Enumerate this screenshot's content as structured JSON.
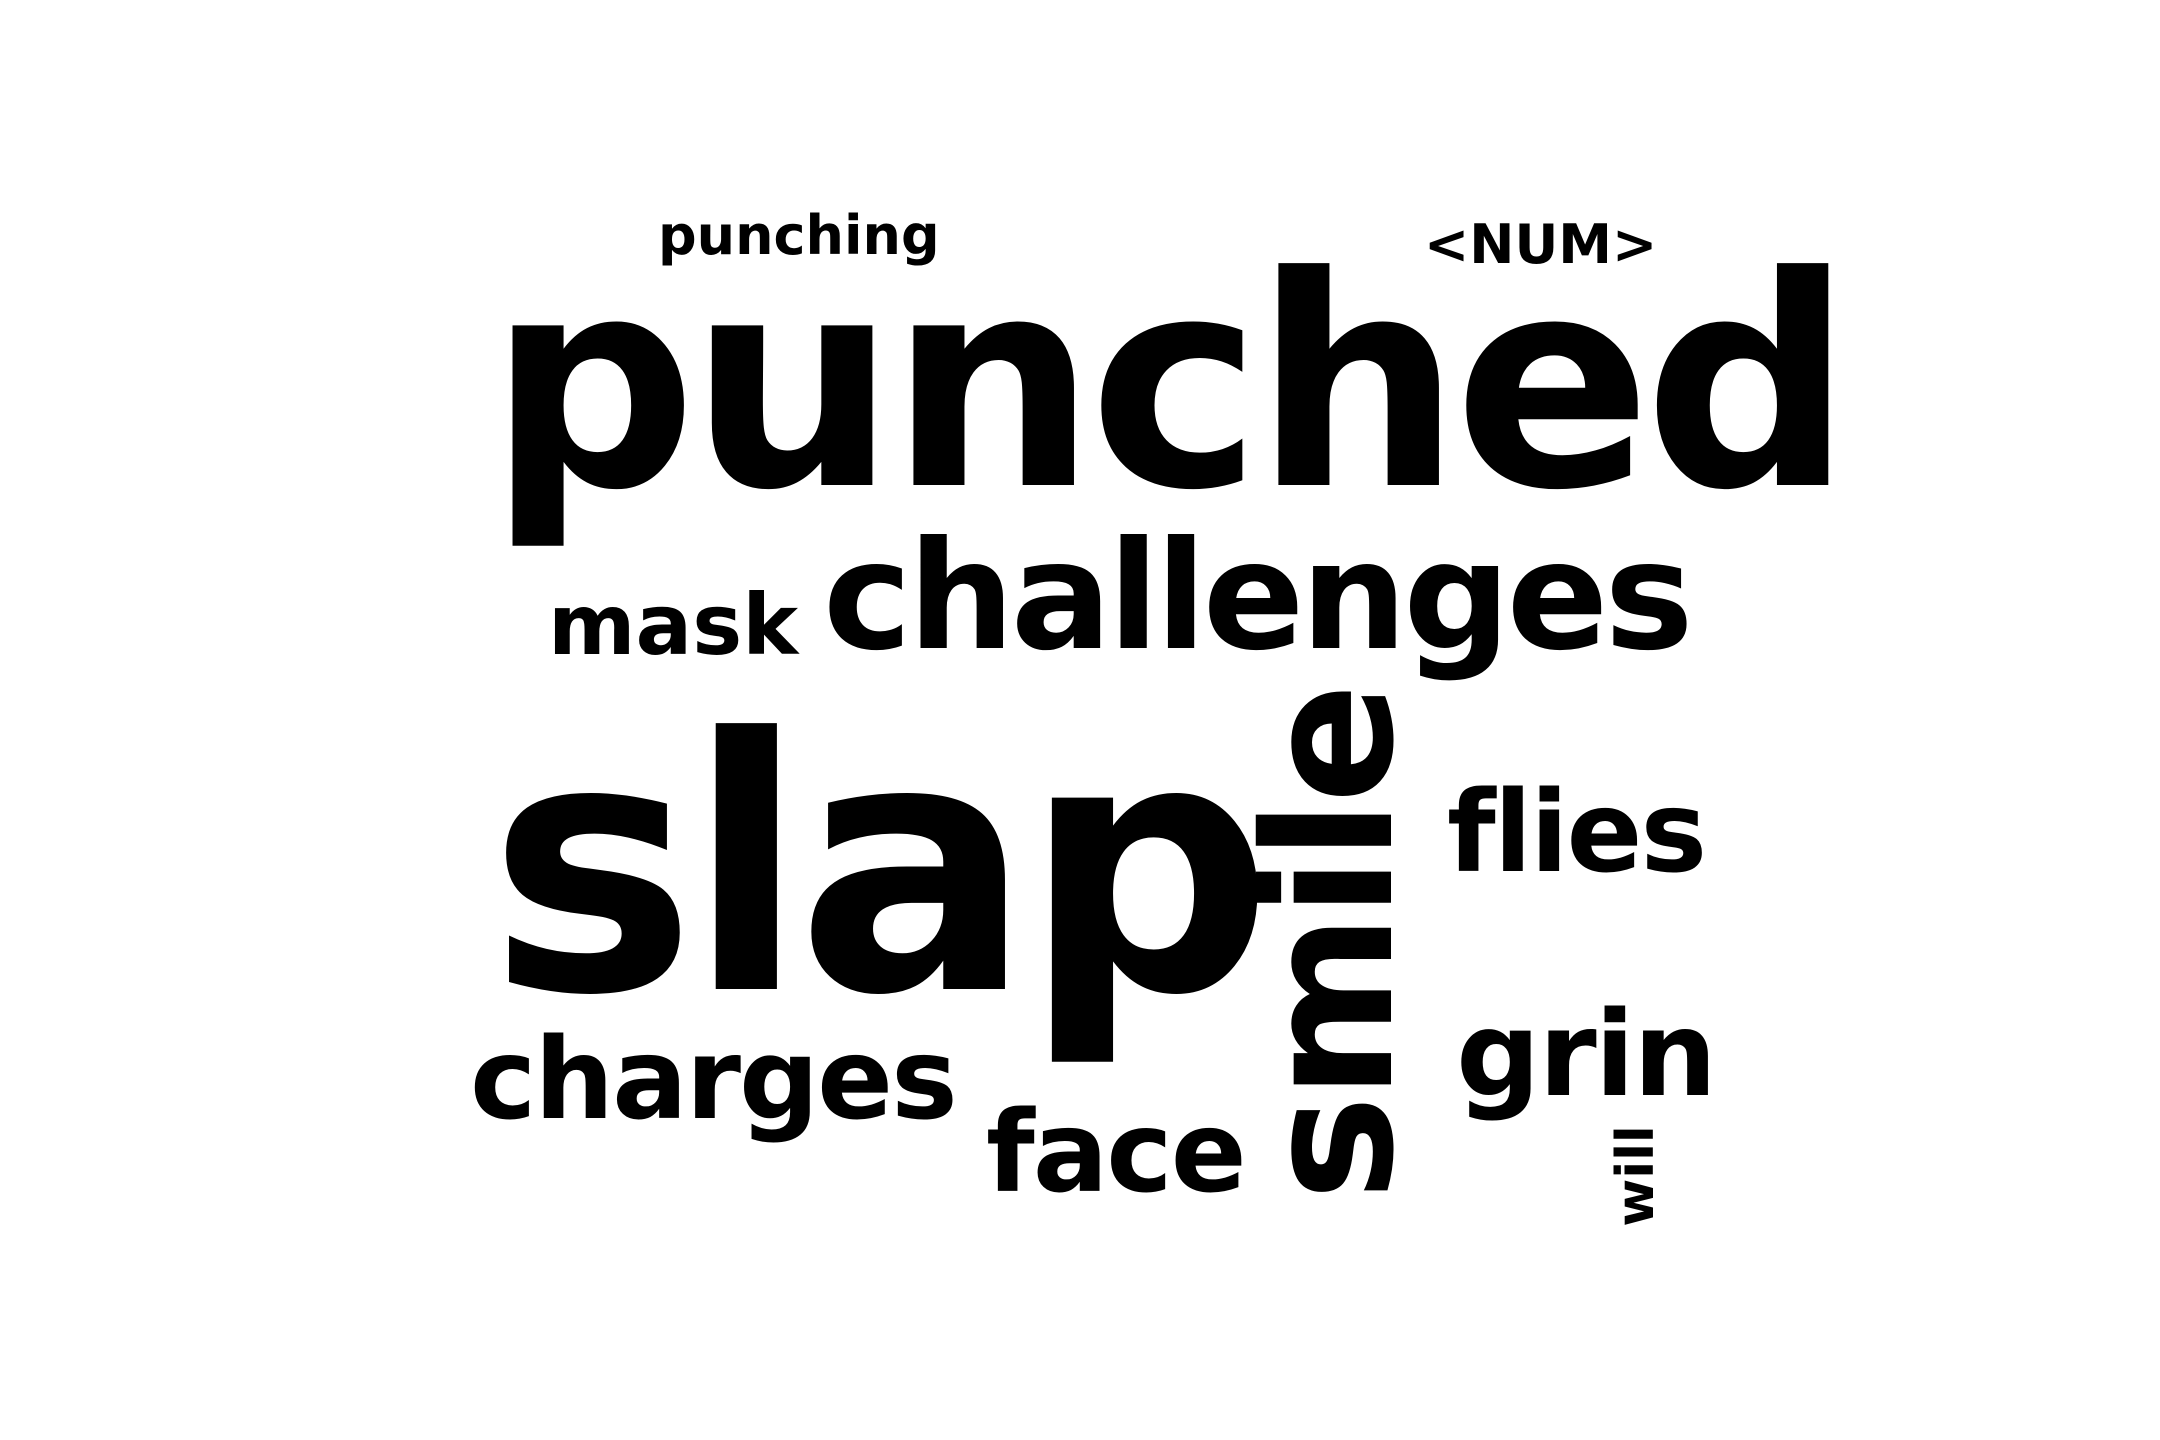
{
  "word_cloud": {
    "words": [
      {
        "text": "punching",
        "rotated": false
      },
      {
        "text": "<NUM>",
        "rotated": false
      },
      {
        "text": "punched",
        "rotated": false
      },
      {
        "text": "mask",
        "rotated": false
      },
      {
        "text": "challenges",
        "rotated": false
      },
      {
        "text": "slap",
        "rotated": false
      },
      {
        "text": "smile",
        "rotated": true
      },
      {
        "text": "flies",
        "rotated": false
      },
      {
        "text": "charges",
        "rotated": false
      },
      {
        "text": "face",
        "rotated": false
      },
      {
        "text": "grin",
        "rotated": false
      },
      {
        "text": "will",
        "rotated": true
      }
    ],
    "text_color": "#000000",
    "background_color": "#ffffff"
  }
}
